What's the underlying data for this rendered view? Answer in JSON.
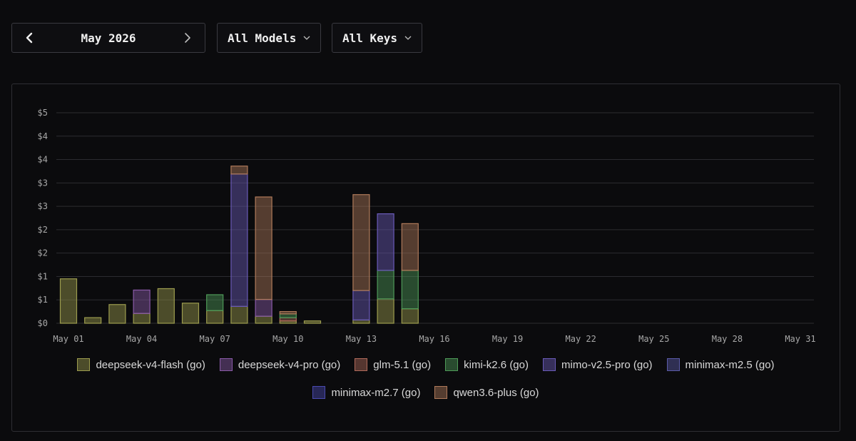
{
  "controls": {
    "month_label": "May 2026",
    "models_label": "All Models",
    "keys_label": "All Keys",
    "prev_icon": "chevron-left-icon",
    "next_icon": "chevron-right-icon",
    "dropdown_icon": "chevron-down-icon"
  },
  "chart_data": {
    "type": "bar",
    "stacked": true,
    "grid": true,
    "legend_position": "bottom",
    "title": "",
    "xlabel": "",
    "ylabel": "",
    "ylim": [
      0,
      4.5
    ],
    "y_ticks": [
      0,
      0.5,
      1,
      1.5,
      2,
      2.5,
      3,
      3.5,
      4,
      4.5
    ],
    "y_tick_labels": [
      "$0",
      "$1",
      "$1",
      "$2",
      "$2",
      "$3",
      "$3",
      "$4",
      "$4",
      "$5"
    ],
    "x_tick_labels": [
      "May 01",
      "May 04",
      "May 07",
      "May 10",
      "May 13",
      "May 16",
      "May 19",
      "May 22",
      "May 25",
      "May 28",
      "May 31"
    ],
    "categories": [
      "May 01",
      "May 02",
      "May 03",
      "May 04",
      "May 05",
      "May 06",
      "May 07",
      "May 08",
      "May 09",
      "May 10",
      "May 11",
      "May 12",
      "May 13",
      "May 14",
      "May 15",
      "May 16",
      "May 17",
      "May 18",
      "May 19",
      "May 20",
      "May 21",
      "May 22",
      "May 23",
      "May 24",
      "May 25",
      "May 26",
      "May 27",
      "May 28",
      "May 29",
      "May 30",
      "May 31"
    ],
    "series": [
      {
        "name": "deepseek-v4-flash (go)",
        "color": "#9c9c4e",
        "values": [
          0.95,
          0.12,
          0.4,
          0.21,
          0.74,
          0.43,
          0.27,
          0.36,
          0.15,
          0.05,
          0.05,
          0,
          0.07,
          0.52,
          0.31,
          0,
          0,
          0,
          0,
          0,
          0,
          0,
          0,
          0,
          0,
          0,
          0,
          0,
          0,
          0,
          0
        ]
      },
      {
        "name": "deepseek-v4-pro (go)",
        "color": "#8a5aa8",
        "values": [
          0,
          0,
          0,
          0.5,
          0,
          0,
          0,
          0,
          0.36,
          0,
          0,
          0,
          0,
          0,
          0,
          0,
          0,
          0,
          0,
          0,
          0,
          0,
          0,
          0,
          0,
          0,
          0,
          0,
          0,
          0,
          0
        ]
      },
      {
        "name": "glm-5.1 (go)",
        "color": "#b06a5a",
        "values": [
          0,
          0,
          0,
          0,
          0,
          0,
          0,
          0,
          0,
          0.07,
          0,
          0,
          0,
          0,
          0,
          0,
          0,
          0,
          0,
          0,
          0,
          0,
          0,
          0,
          0,
          0,
          0,
          0,
          0,
          0,
          0
        ]
      },
      {
        "name": "kimi-k2.6 (go)",
        "color": "#4e9a58",
        "values": [
          0,
          0,
          0,
          0,
          0,
          0,
          0.34,
          0,
          0,
          0.08,
          0,
          0,
          0,
          0.61,
          0.82,
          0,
          0,
          0,
          0,
          0,
          0,
          0,
          0,
          0,
          0,
          0,
          0,
          0,
          0,
          0,
          0
        ]
      },
      {
        "name": "mimo-v2.5-pro (go)",
        "color": "#6a5ab8",
        "values": [
          0,
          0,
          0,
          0,
          0,
          0,
          0,
          2.83,
          0,
          0,
          0,
          0,
          0.63,
          1.21,
          0,
          0,
          0,
          0,
          0,
          0,
          0,
          0,
          0,
          0,
          0,
          0,
          0,
          0,
          0,
          0,
          0
        ]
      },
      {
        "name": "minimax-m2.5 (go)",
        "color": "#5a5aa8",
        "values": [
          0,
          0,
          0,
          0,
          0,
          0,
          0,
          0,
          0,
          0,
          0,
          0,
          0,
          0,
          0,
          0,
          0,
          0,
          0,
          0,
          0,
          0,
          0,
          0,
          0,
          0,
          0,
          0,
          0,
          0,
          0
        ]
      },
      {
        "name": "minimax-m2.7 (go)",
        "color": "#4a4ab0",
        "values": [
          0,
          0,
          0,
          0,
          0,
          0,
          0,
          0,
          0,
          0,
          0,
          0,
          0,
          0,
          0,
          0,
          0,
          0,
          0,
          0,
          0,
          0,
          0,
          0,
          0,
          0,
          0,
          0,
          0,
          0,
          0
        ]
      },
      {
        "name": "qwen3.6-plus (go)",
        "color": "#b07a5a",
        "values": [
          0,
          0,
          0,
          0,
          0,
          0,
          0,
          0.17,
          2.19,
          0.05,
          0,
          0,
          2.05,
          0,
          1.0,
          0,
          0,
          0,
          0,
          0,
          0,
          0,
          0,
          0,
          0,
          0,
          0,
          0,
          0,
          0,
          0
        ]
      }
    ]
  }
}
